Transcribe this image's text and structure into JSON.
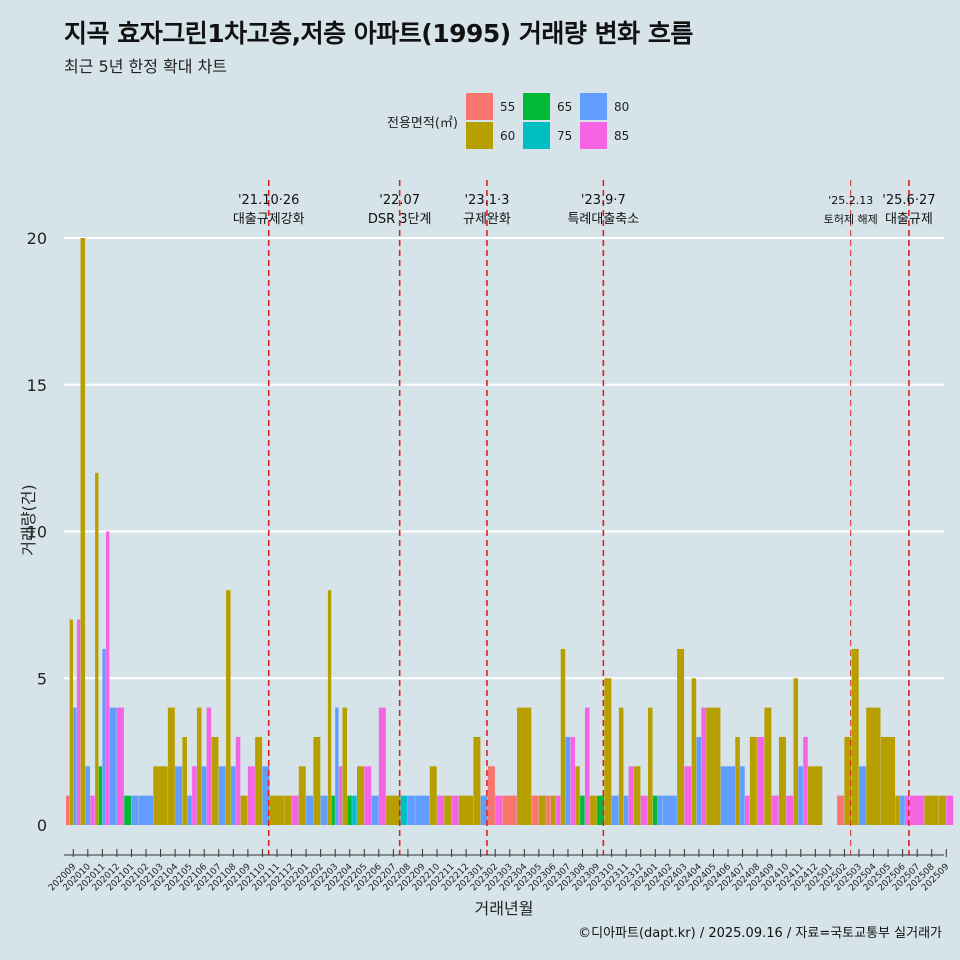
{
  "title": "지곡 효자그린1차고층,저층 아파트(1995) 거래량 변화 흐름",
  "subtitle": "최근 5년 한정 확대 차트",
  "caption": "©디아파트(dapt.kr) / 2025.09.16 / 자료=국토교통부 실거래가",
  "chart_data": {
    "type": "bar",
    "xlabel": "거래년월",
    "ylabel": "거래량(건)",
    "ylim": [
      0,
      21
    ],
    "yticks": [
      0,
      5,
      10,
      15,
      20
    ],
    "grid": true,
    "legend": {
      "title": "전용면적(㎡)",
      "position": "top",
      "items": [
        {
          "name": "55",
          "color": "#f8766d"
        },
        {
          "name": "60",
          "color": "#b79f00"
        },
        {
          "name": "65",
          "color": "#00ba38"
        },
        {
          "name": "75",
          "color": "#00bfc4"
        },
        {
          "name": "80",
          "color": "#619cff"
        },
        {
          "name": "85",
          "color": "#f564e3"
        }
      ]
    },
    "categories": [
      "202009",
      "202010",
      "202011",
      "202012",
      "202101",
      "202102",
      "202103",
      "202104",
      "202105",
      "202106",
      "202107",
      "202108",
      "202109",
      "202110",
      "202111",
      "202112",
      "202201",
      "202202",
      "202203",
      "202204",
      "202205",
      "202206",
      "202207",
      "202208",
      "202209",
      "202210",
      "202211",
      "202212",
      "202301",
      "202302",
      "202303",
      "202304",
      "202305",
      "202306",
      "202307",
      "202308",
      "202309",
      "202310",
      "202311",
      "202312",
      "202401",
      "202402",
      "202403",
      "202404",
      "202405",
      "202406",
      "202407",
      "202408",
      "202409",
      "202410",
      "202411",
      "202412",
      "202501",
      "202502",
      "202503",
      "202504",
      "202505",
      "202506",
      "202507",
      "202508",
      "202509"
    ],
    "series": [
      {
        "name": "55",
        "color": "#f8766d",
        "values": [
          1,
          0,
          0,
          0,
          0,
          0,
          0,
          0,
          0,
          0,
          0,
          0,
          0,
          0,
          0,
          0,
          0,
          0,
          0,
          0,
          0,
          0,
          0,
          0,
          0,
          0,
          0,
          0,
          0,
          2,
          1,
          0,
          1,
          1,
          0,
          0,
          0,
          0,
          0,
          0,
          0,
          0,
          0,
          0,
          0,
          0,
          0,
          0,
          0,
          0,
          0,
          0,
          0,
          1,
          0,
          0,
          0,
          0,
          0,
          0,
          0
        ]
      },
      {
        "name": "60",
        "color": "#b79f00",
        "values": [
          7,
          20,
          12,
          0,
          0,
          0,
          2,
          4,
          3,
          4,
          3,
          8,
          1,
          3,
          1,
          1,
          2,
          3,
          8,
          4,
          2,
          0,
          1,
          0,
          0,
          2,
          1,
          1,
          3,
          0,
          0,
          4,
          1,
          1,
          6,
          2,
          1,
          5,
          4,
          2,
          4,
          0,
          6,
          5,
          4,
          0,
          3,
          3,
          4,
          3,
          5,
          2,
          0,
          3,
          6,
          4,
          3,
          1,
          0,
          1,
          1
        ]
      },
      {
        "name": "65",
        "color": "#00ba38",
        "values": [
          0,
          0,
          2,
          0,
          1,
          0,
          0,
          0,
          0,
          0,
          0,
          0,
          0,
          0,
          0,
          0,
          0,
          0,
          1,
          1,
          0,
          0,
          0,
          0,
          0,
          0,
          0,
          0,
          0,
          0,
          0,
          0,
          0,
          0,
          0,
          1,
          1,
          0,
          0,
          0,
          1,
          0,
          0,
          0,
          0,
          0,
          0,
          0,
          0,
          0,
          0,
          0,
          0,
          0,
          0,
          0,
          0,
          0,
          0,
          0,
          0
        ]
      },
      {
        "name": "75",
        "color": "#00bfc4",
        "values": [
          0,
          0,
          0,
          0,
          0,
          0,
          0,
          0,
          0,
          0,
          0,
          0,
          0,
          0,
          0,
          0,
          0,
          0,
          0,
          1,
          0,
          0,
          0,
          1,
          0,
          0,
          0,
          0,
          0,
          0,
          0,
          0,
          0,
          0,
          0,
          0,
          0,
          0,
          0,
          0,
          0,
          0,
          0,
          0,
          0,
          0,
          0,
          0,
          0,
          0,
          0,
          0,
          0,
          0,
          0,
          0,
          0,
          0,
          0,
          0,
          0
        ]
      },
      {
        "name": "80",
        "color": "#619cff",
        "values": [
          4,
          2,
          6,
          4,
          1,
          1,
          0,
          2,
          1,
          2,
          2,
          2,
          0,
          2,
          0,
          0,
          1,
          1,
          4,
          0,
          0,
          1,
          0,
          1,
          1,
          0,
          0,
          0,
          1,
          0,
          0,
          0,
          0,
          0,
          3,
          0,
          0,
          1,
          1,
          0,
          1,
          1,
          0,
          3,
          0,
          2,
          2,
          0,
          0,
          0,
          2,
          0,
          0,
          0,
          2,
          0,
          0,
          1,
          0,
          0,
          0
        ]
      },
      {
        "name": "85",
        "color": "#f564e3",
        "values": [
          7,
          1,
          10,
          4,
          0,
          0,
          0,
          0,
          2,
          4,
          0,
          3,
          2,
          0,
          0,
          1,
          0,
          0,
          2,
          0,
          2,
          4,
          0,
          0,
          0,
          1,
          1,
          0,
          0,
          1,
          0,
          0,
          0,
          1,
          3,
          4,
          0,
          0,
          2,
          1,
          0,
          0,
          2,
          4,
          0,
          0,
          1,
          3,
          1,
          1,
          3,
          0,
          0,
          0,
          0,
          0,
          0,
          1,
          1,
          0,
          1
        ]
      }
    ],
    "events": [
      {
        "after": "202110",
        "date": "'21.10·26",
        "label": "대출규제강화"
      },
      {
        "after": "202207",
        "date": "'22.07",
        "label": "DSR 3단계"
      },
      {
        "after": "202301",
        "date": "'23.1·3",
        "label": "규제완화"
      },
      {
        "after": "202309",
        "date": "'23.9·7",
        "label": "특례대출축소"
      },
      {
        "after": "202502",
        "date": "'25.2.13",
        "label": "토허제 해제"
      },
      {
        "after": "202506",
        "date": "'25.6·27",
        "label": "대출규제"
      }
    ]
  }
}
